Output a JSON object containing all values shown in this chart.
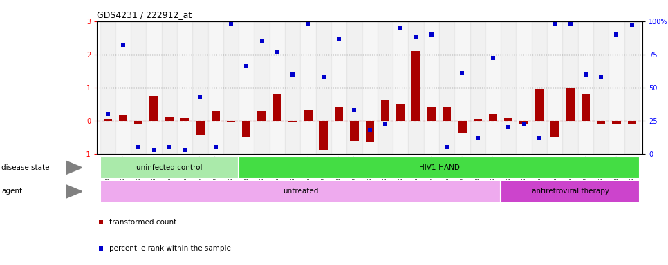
{
  "title": "GDS4231 / 222912_at",
  "samples": [
    "GSM697483",
    "GSM697484",
    "GSM697485",
    "GSM697486",
    "GSM697487",
    "GSM697488",
    "GSM697489",
    "GSM697490",
    "GSM697491",
    "GSM697492",
    "GSM697493",
    "GSM697494",
    "GSM697495",
    "GSM697496",
    "GSM697497",
    "GSM697498",
    "GSM697499",
    "GSM697500",
    "GSM697501",
    "GSM697502",
    "GSM697503",
    "GSM697504",
    "GSM697505",
    "GSM697506",
    "GSM697507",
    "GSM697508",
    "GSM697509",
    "GSM697510",
    "GSM697511",
    "GSM697512",
    "GSM697513",
    "GSM697514",
    "GSM697515",
    "GSM697516",
    "GSM697517"
  ],
  "transformed_count": [
    0.05,
    0.18,
    -0.12,
    0.75,
    0.12,
    0.08,
    -0.42,
    0.28,
    -0.05,
    -0.5,
    0.28,
    0.8,
    -0.05,
    0.32,
    -0.9,
    0.42,
    -0.6,
    -0.65,
    0.62,
    0.52,
    2.1,
    0.42,
    0.42,
    -0.35,
    0.05,
    0.2,
    0.08,
    -0.12,
    0.95,
    -0.5,
    0.98,
    0.8,
    -0.08,
    -0.08,
    -0.12
  ],
  "percentile_rank_pct": [
    30,
    82,
    5,
    3,
    5,
    3,
    43,
    5,
    98,
    66,
    85,
    77,
    60,
    98,
    58,
    87,
    33,
    18,
    22,
    95,
    88,
    90,
    5,
    61,
    12,
    72,
    20,
    22,
    12,
    98,
    98,
    60,
    58,
    90,
    97
  ],
  "disease_state_groups": [
    {
      "label": "uninfected control",
      "start": 0,
      "end": 9,
      "color": "#aaeaaa"
    },
    {
      "label": "HIV1-HAND",
      "start": 9,
      "end": 35,
      "color": "#44dd44"
    }
  ],
  "agent_groups": [
    {
      "label": "untreated",
      "start": 0,
      "end": 26,
      "color": "#eeaaee"
    },
    {
      "label": "antiretroviral therapy",
      "start": 26,
      "end": 35,
      "color": "#cc44cc"
    }
  ],
  "ylim_left": [
    -1,
    3
  ],
  "ylim_right": [
    0,
    100
  ],
  "yticks_left": [
    -1,
    0,
    1,
    2,
    3
  ],
  "yticks_right": [
    0,
    25,
    50,
    75,
    100
  ],
  "bar_color": "#aa0000",
  "dot_color": "#0000cc",
  "dashed_line_pct": 25,
  "dotted_lines_pct": [
    50,
    75
  ],
  "legend_items": [
    {
      "label": "transformed count",
      "color": "#aa0000"
    },
    {
      "label": "percentile rank within the sample",
      "color": "#0000cc"
    }
  ]
}
